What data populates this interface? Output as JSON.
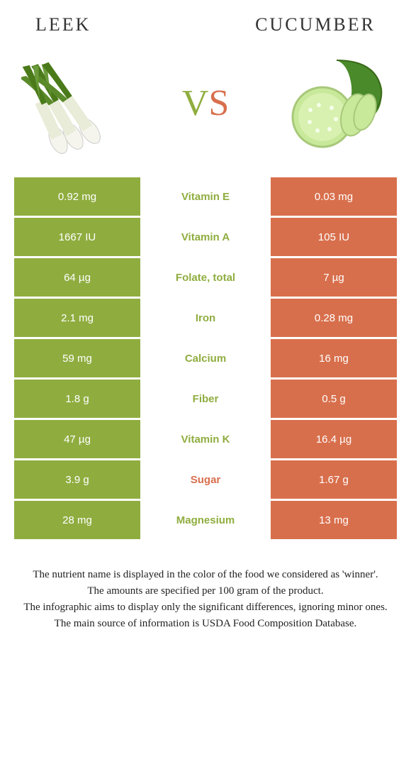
{
  "header": {
    "left": "Leek",
    "right": "Cucumber"
  },
  "vs": {
    "v": "V",
    "s": "S"
  },
  "colors": {
    "left_bg": "#8fad3f",
    "right_bg": "#d86f4c",
    "nutrient_winner_left": "#8fad3f",
    "nutrient_winner_right": "#d86f4c",
    "text_white": "#ffffff"
  },
  "rows": [
    {
      "left": "0.92 mg",
      "nutrient": "Vitamin E",
      "right": "0.03 mg",
      "winner": "left"
    },
    {
      "left": "1667 IU",
      "nutrient": "Vitamin A",
      "right": "105 IU",
      "winner": "left"
    },
    {
      "left": "64 µg",
      "nutrient": "Folate, total",
      "right": "7 µg",
      "winner": "left"
    },
    {
      "left": "2.1 mg",
      "nutrient": "Iron",
      "right": "0.28 mg",
      "winner": "left"
    },
    {
      "left": "59 mg",
      "nutrient": "Calcium",
      "right": "16 mg",
      "winner": "left"
    },
    {
      "left": "1.8 g",
      "nutrient": "Fiber",
      "right": "0.5 g",
      "winner": "left"
    },
    {
      "left": "47 µg",
      "nutrient": "Vitamin K",
      "right": "16.4 µg",
      "winner": "left"
    },
    {
      "left": "3.9 g",
      "nutrient": "Sugar",
      "right": "1.67 g",
      "winner": "right"
    },
    {
      "left": "28 mg",
      "nutrient": "Magnesium",
      "right": "13 mg",
      "winner": "left"
    }
  ],
  "footer": {
    "p1": "The nutrient name is displayed in the color of the food we considered as 'winner'.",
    "p2": "The amounts are specified per 100 gram of the product.",
    "p3": "The infographic aims to display only the significant differences, ignoring minor ones.",
    "p4": "The main source of information is USDA Food Composition Database."
  }
}
